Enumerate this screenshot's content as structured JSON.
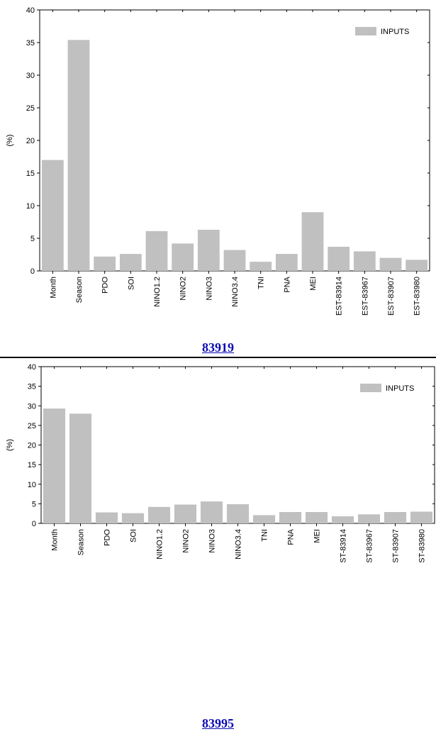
{
  "chart_data": [
    {
      "type": "bar",
      "caption": "83919",
      "ylabel": "(%)",
      "ylim": [
        0,
        40
      ],
      "yticks": [
        0,
        5,
        10,
        15,
        20,
        25,
        30,
        35,
        40
      ],
      "legend_position": "top-right",
      "bar_color": "#c0c0c0",
      "categories": [
        "Month",
        "Season",
        "PDO",
        "SOI",
        "NINO1.2",
        "NINO2",
        "NINO3",
        "NINO3.4",
        "TNI",
        "PNA",
        "MEI",
        "EST-83914",
        "EST-83967",
        "EST-83907",
        "EST-83980"
      ],
      "series": [
        {
          "name": "INPUTS",
          "values": [
            17.0,
            35.4,
            2.2,
            2.6,
            6.1,
            4.2,
            6.3,
            3.2,
            1.4,
            2.6,
            9.0,
            3.7,
            3.0,
            2.0,
            1.7
          ]
        }
      ]
    },
    {
      "type": "bar",
      "caption": "83995",
      "ylabel": "(%)",
      "ylim": [
        0,
        40
      ],
      "yticks": [
        0,
        5,
        10,
        15,
        20,
        25,
        30,
        35,
        40
      ],
      "legend_position": "top-right",
      "bar_color": "#c0c0c0",
      "categories": [
        "Month",
        "Season",
        "PDO",
        "SOI",
        "NINO1.2",
        "NINO2",
        "NINO3",
        "NINO3.4",
        "TNI",
        "PNA",
        "MEI",
        "ST-83914",
        "ST-83967",
        "ST-83907",
        "ST-83980"
      ],
      "series": [
        {
          "name": "INPUTS",
          "values": [
            29.3,
            28.0,
            2.8,
            2.6,
            4.2,
            4.8,
            5.6,
            4.9,
            2.1,
            2.9,
            2.9,
            1.8,
            2.3,
            2.9,
            3.0
          ]
        }
      ]
    }
  ]
}
